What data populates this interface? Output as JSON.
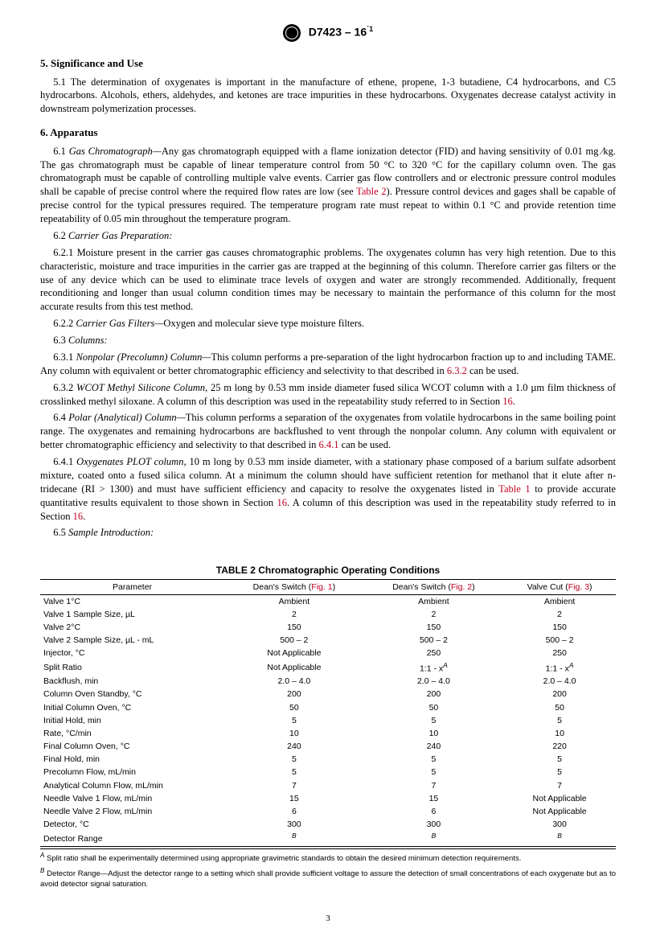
{
  "header": {
    "designation": "D7423 – 16",
    "epsilon": "´1"
  },
  "sections": {
    "s5": {
      "title": "5.  Significance and Use",
      "p51": "5.1 The determination of oxygenates is important in the manufacture of ethene, propene, 1-3 butadiene, C4 hydrocarbons, and C5 hydrocarbons. Alcohols, ethers, aldehydes, and ketones are trace impurities in these hydrocarbons. Oxygenates decrease catalyst activity in downstream polymerization processes."
    },
    "s6": {
      "title": "6.  Apparatus",
      "p61a": "Gas Chromatograph—",
      "p61b": "Any gas chromatograph equipped with a flame ionization detector (FID) and having sensitivity of 0.01 mg ⁄kg. The gas chromatograph must be capable of linear temperature control from 50 °C to 320 °C for the capillary column oven. The gas chromatograph must be capable of controlling multiple valve events. Carrier gas flow controllers and or electronic pressure control modules shall be capable of precise control where the required flow rates are low (see ",
      "p61c": "). Pressure control devices and gages shall be capable of precise control for the typical pressures required. The temperature program rate must repeat to within 0.1 °C and provide retention time repeatability of 0.05 min throughout the temperature program.",
      "p62t": "Carrier Gas Preparation:",
      "p621": "6.2.1 Moisture present in the carrier gas causes chromatographic problems. The oxygenates column has very high retention. Due to this characteristic, moisture and trace impurities in the carrier gas are trapped at the beginning of this column. Therefore carrier gas filters or the use of any device which can be used to eliminate trace levels of oxygen and water are strongly recommended. Additionally, frequent reconditioning and longer than usual column condition times may be necessary to maintain the performance of this column for the most accurate results from this test method.",
      "p622a": "Carrier Gas Filters—",
      "p622b": "Oxygen and molecular sieve type moisture filters.",
      "p63t": "Columns:",
      "p631a": "Nonpolar (Precolumn) Column—",
      "p631b": "This column performs a pre-separation of the light hydrocarbon fraction up to and including TAME. Any column with equivalent or better chromatographic efficiency and selectivity to that described in ",
      "p631c": " can be used.",
      "p632a": "WCOT Methyl Silicone Column,",
      "p632b": " 25 m long by 0.53 mm inside diameter fused silica WCOT column with a 1.0 µm film thickness of crosslinked methyl siloxane. A column of this description was used in the repeatability study referred to in Section ",
      "p64a": "Polar (Analytical) Column—",
      "p64b": "This column performs a separation of the oxygenates from volatile hydrocarbons in the same boiling point range. The oxygenates and remaining hydrocarbons are backflushed to vent through the nonpolar column. Any column with equivalent or better chromatographic efficiency and selectivity to that described in ",
      "p64c": " can be used.",
      "p641a": "Oxygenates PLOT column,",
      "p641b": " 10 m long by 0.53 mm inside diameter, with a stationary phase composed of a barium sulfate adsorbent mixture, coated onto a fused silica column. At a minimum the column should have sufficient retention for methanol that it elute after n-tridecane (RI > 1300) and must have sufficient efficiency and capacity to resolve the oxygenates listed in ",
      "p641c": " to provide accurate quantitative results equivalent to those shown in Section ",
      "p641d": ". A column of this description was used in the repeatability study referred to in Section ",
      "p65t": "Sample Introduction:"
    },
    "refs": {
      "table2": "Table 2",
      "ref632": "6.3.2",
      "ref641": "6.4.1",
      "table1": "Table 1",
      "sec16": "16",
      "fig1": "Fig. 1",
      "fig2": "Fig. 2",
      "fig3": "Fig. 3"
    }
  },
  "table2": {
    "title": "TABLE 2 Chromatographic Operating Conditions",
    "columns": {
      "param": "Parameter",
      "c1a": "Dean's Switch (",
      "c1b": ")",
      "c2a": "Dean's Switch (",
      "c2b": ")",
      "c3a": "Valve Cut (",
      "c3b": ")"
    },
    "rows": [
      {
        "p": "Valve 1°C",
        "a": "Ambient",
        "b": "Ambient",
        "c": "Ambient"
      },
      {
        "p": "Valve 1 Sample Size, µL",
        "a": "2",
        "b": "2",
        "c": "2"
      },
      {
        "p": "Valve 2°C",
        "a": "150",
        "b": "150",
        "c": "150"
      },
      {
        "p": "Valve 2 Sample Size, µL - mL",
        "a": "500 – 2",
        "b": "500 – 2",
        "c": "500 – 2"
      },
      {
        "p": "Injector, °C",
        "a": "Not Applicable",
        "b": "250",
        "c": "250"
      },
      {
        "p": "Split Ratio",
        "a": "Not Applicable",
        "b": "1:1 - x",
        "bs": "A",
        "c": "1:1 - x",
        "cs": "A"
      },
      {
        "p": "Backflush, min",
        "a": "2.0 – 4.0",
        "b": "2.0 – 4.0",
        "c": "2.0 – 4.0"
      },
      {
        "p": "Column Oven Standby, °C",
        "a": "200",
        "b": "200",
        "c": "200"
      },
      {
        "p": "Initial Column Oven, °C",
        "a": "50",
        "b": "50",
        "c": "50"
      },
      {
        "p": "Initial Hold, min",
        "a": "5",
        "b": "5",
        "c": "5"
      },
      {
        "p": "Rate, °C/min",
        "a": "10",
        "b": "10",
        "c": "10"
      },
      {
        "p": "Final Column Oven, °C",
        "a": "240",
        "b": "240",
        "c": "220"
      },
      {
        "p": "Final Hold, min",
        "a": "5",
        "b": "5",
        "c": "5"
      },
      {
        "p": "Precolumn Flow, mL/min",
        "a": "5",
        "b": "5",
        "c": "5"
      },
      {
        "p": "Analytical Column Flow, mL/min",
        "a": "7",
        "b": "7",
        "c": "7"
      },
      {
        "p": "Needle Valve 1 Flow, mL/min",
        "a": "15",
        "b": "15",
        "c": "Not Applicable"
      },
      {
        "p": "Needle Valve 2 Flow, mL/min",
        "a": "6",
        "b": "6",
        "c": "Not Applicable"
      },
      {
        "p": "Detector, °C",
        "a": "300",
        "b": "300",
        "c": "300"
      },
      {
        "p": "Detector Range",
        "a": "",
        "as": "B",
        "b": "",
        "bs": "B",
        "c": "",
        "cs": "B"
      }
    ],
    "footnotes": {
      "A": " Split ratio shall be experimentally determined using appropriate gravimetric standards to obtain the desired minimum detection requirements.",
      "B": " Detector Range—Adjust the detector range to a setting which shall provide sufficient voltage to assure the detection of small concentrations of each oxygenate but as to avoid detector signal saturation."
    }
  },
  "page_number": "3"
}
